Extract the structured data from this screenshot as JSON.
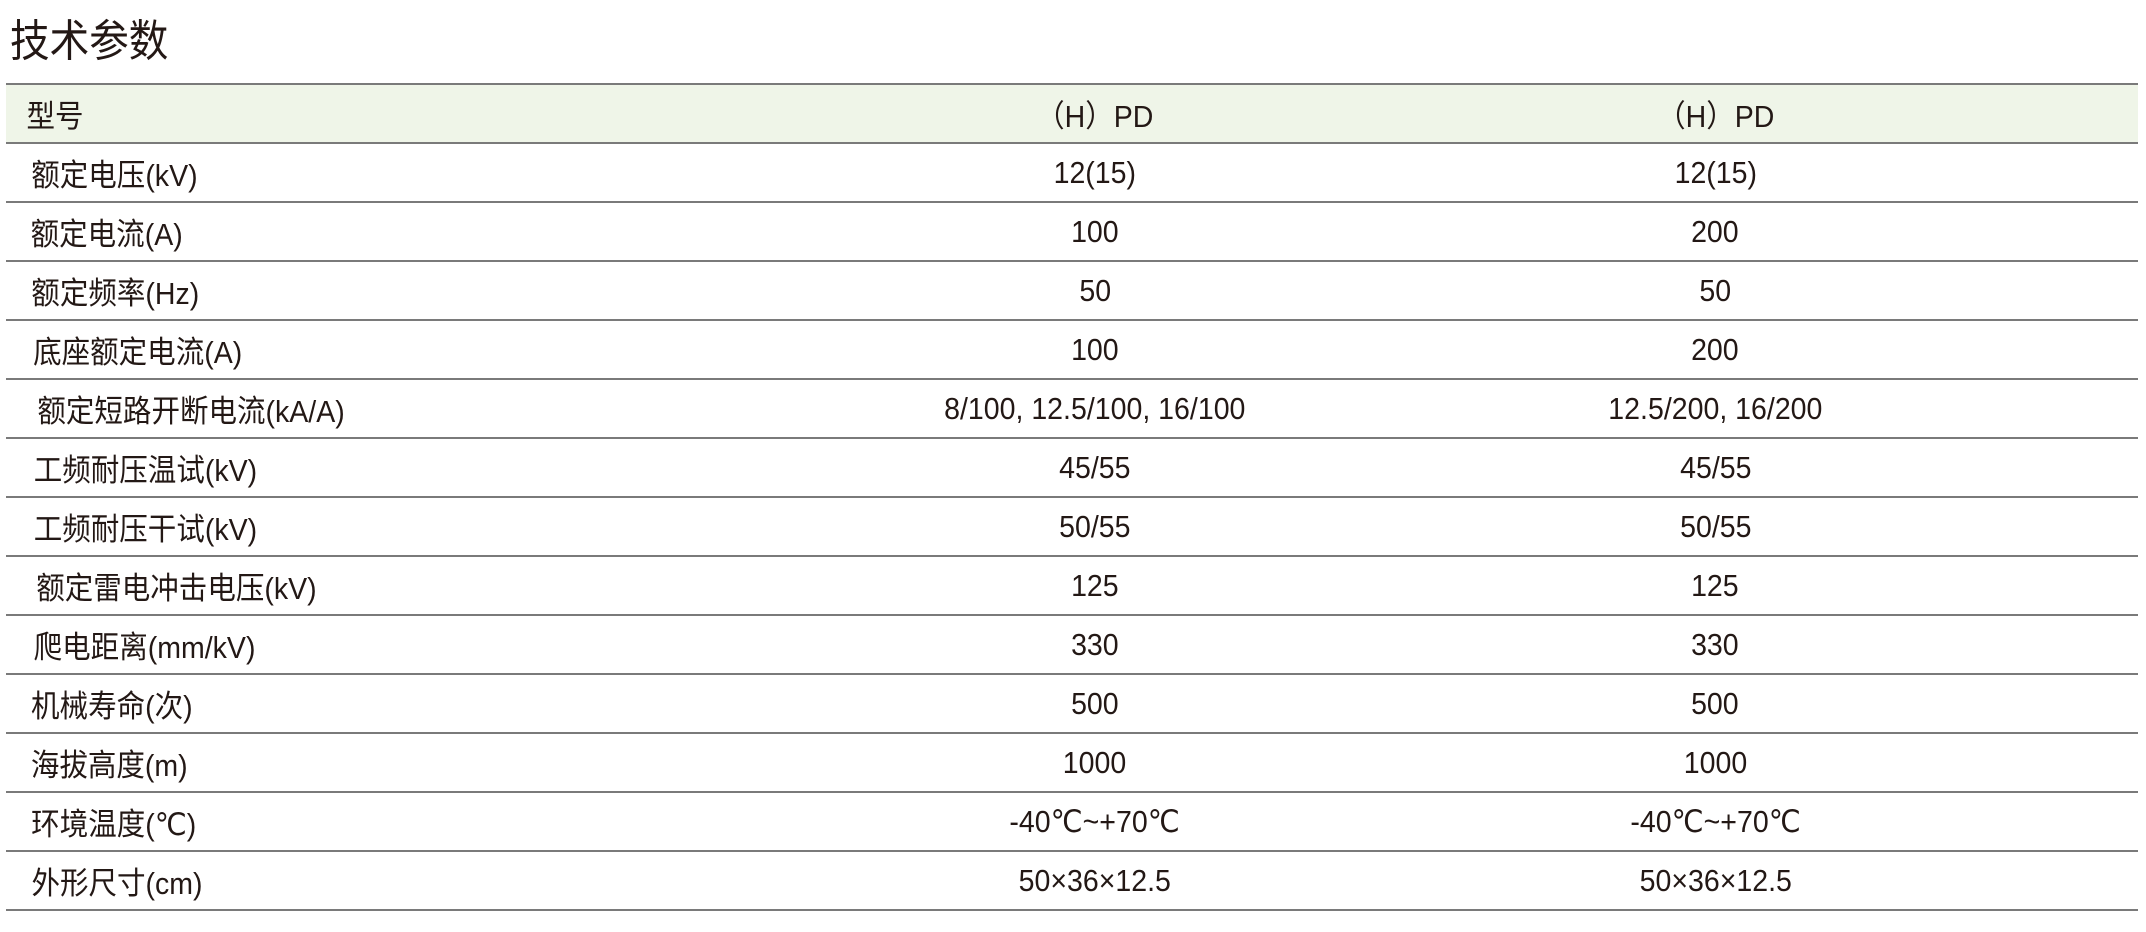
{
  "title": "技术参数",
  "table": {
    "header": {
      "label": "型号",
      "v1": "（H）PD",
      "v2": "（H）PD"
    },
    "rows": [
      {
        "label": "额定电压(kV)",
        "v1": "12(15)",
        "v2": "12(15)"
      },
      {
        "label": "额定电流(A)",
        "v1": "100",
        "v2": "200"
      },
      {
        "label": "额定频率(Hz)",
        "v1": "50",
        "v2": "50"
      },
      {
        "label": "底座额定电流(A)",
        "v1": "100",
        "v2": "200"
      },
      {
        "label": "额定短路开断电流(kA/A)",
        "v1": "8/100, 12.5/100, 16/100",
        "v2": "12.5/200, 16/200"
      },
      {
        "label": "工频耐压温试(kV)",
        "v1": "45/55",
        "v2": "45/55"
      },
      {
        "label": "工频耐压干试(kV)",
        "v1": "50/55",
        "v2": "50/55"
      },
      {
        "label": "额定雷电冲击电压(kV)",
        "v1": "125",
        "v2": "125"
      },
      {
        "label": "爬电距离(mm/kV)",
        "v1": "330",
        "v2": "330"
      },
      {
        "label": "机械寿命(次)",
        "v1": "500",
        "v2": "500"
      },
      {
        "label": "海拔高度(m)",
        "v1": "1000",
        "v2": "1000"
      },
      {
        "label": "环境温度(℃)",
        "v1": "-40℃~+70℃",
        "v2": "-40℃~+70℃"
      },
      {
        "label": "外形尺寸(cm)",
        "v1": "50×36×12.5",
        "v2": "50×36×12.5"
      }
    ]
  },
  "colors": {
    "header_bg": "#eff5e8",
    "rule": "#7a7a7a",
    "text": "#231815"
  }
}
